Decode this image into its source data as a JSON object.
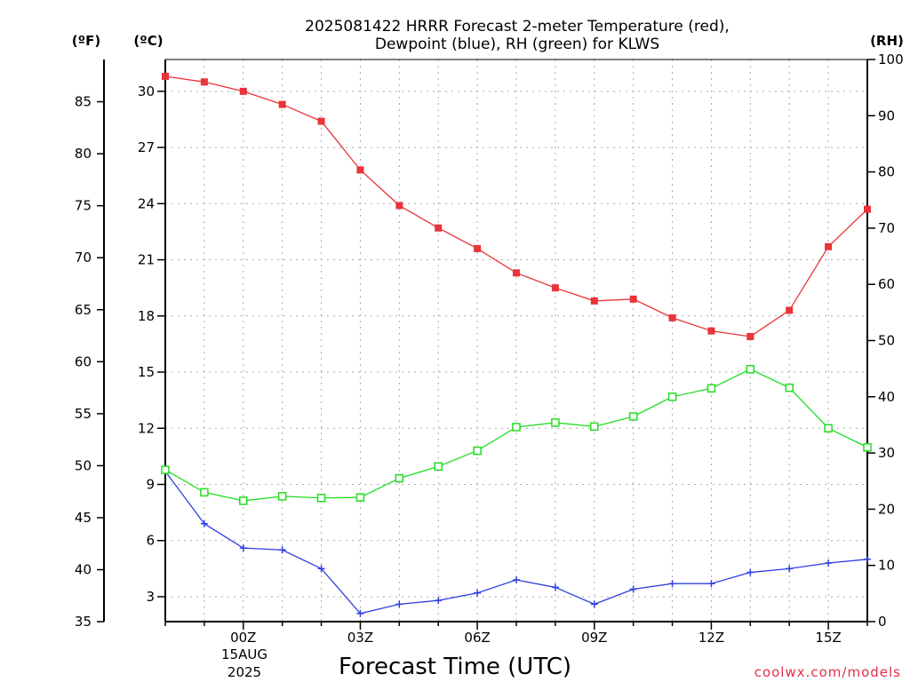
{
  "chart_data": {
    "type": "line",
    "title_line1": "2025081422 HRRR Forecast 2-meter Temperature (red),",
    "title_line2": "Dewpoint (blue), RH (green) for KLWS",
    "xlabel": "Forecast Time (UTC)",
    "credit": "coolwx.com/models",
    "axis_labels": {
      "fahrenheit": "(ºF)",
      "celsius": "(ºC)",
      "rh": "(RH)"
    },
    "x": [
      "22Z",
      "23Z",
      "00Z",
      "01Z",
      "02Z",
      "03Z",
      "04Z",
      "05Z",
      "06Z",
      "07Z",
      "08Z",
      "09Z",
      "10Z",
      "11Z",
      "12Z",
      "13Z",
      "14Z",
      "15Z",
      "16Z"
    ],
    "x_tick_labels": [
      "00Z",
      "03Z",
      "06Z",
      "09Z",
      "12Z",
      "15Z"
    ],
    "x_date_label": [
      "15AUG",
      "2025"
    ],
    "celsius_ticks": [
      3,
      6,
      9,
      12,
      15,
      18,
      21,
      24,
      27,
      30
    ],
    "fahrenheit_ticks": [
      35,
      40,
      45,
      50,
      55,
      60,
      65,
      70,
      75,
      80,
      85
    ],
    "rh_ticks": [
      0,
      10,
      20,
      30,
      40,
      50,
      60,
      70,
      80,
      90,
      100
    ],
    "ylim_celsius": [
      1.67,
      31.7
    ],
    "ylim_rh": [
      0,
      100
    ],
    "grid": true,
    "colors": {
      "temperature": "#e8343a",
      "dewpoint": "#2e3fe0",
      "rh": "#22dd22",
      "grid": "#aaaaaa"
    },
    "series": [
      {
        "key": "temperature",
        "values": [
          30.8,
          30.5,
          30.0,
          29.3,
          28.4,
          25.8,
          23.9,
          22.7,
          21.6,
          20.3,
          19.5,
          18.8,
          18.9,
          17.9,
          17.2,
          16.9,
          18.3,
          21.7,
          23.7
        ]
      },
      {
        "key": "dewpoint",
        "values": [
          9.7,
          6.9,
          5.6,
          5.5,
          4.5,
          2.1,
          2.6,
          2.8,
          3.2,
          3.9,
          3.5,
          2.6,
          3.4,
          3.7,
          3.7,
          4.3,
          4.5,
          4.8,
          5.0
        ]
      },
      {
        "key": "rh",
        "values": [
          27,
          23,
          21.5,
          22.3,
          22,
          22.1,
          25.5,
          27.6,
          30.4,
          34.6,
          35.4,
          34.7,
          36.5,
          40,
          41.5,
          44.9,
          41.6,
          34.4,
          31
        ]
      }
    ]
  }
}
